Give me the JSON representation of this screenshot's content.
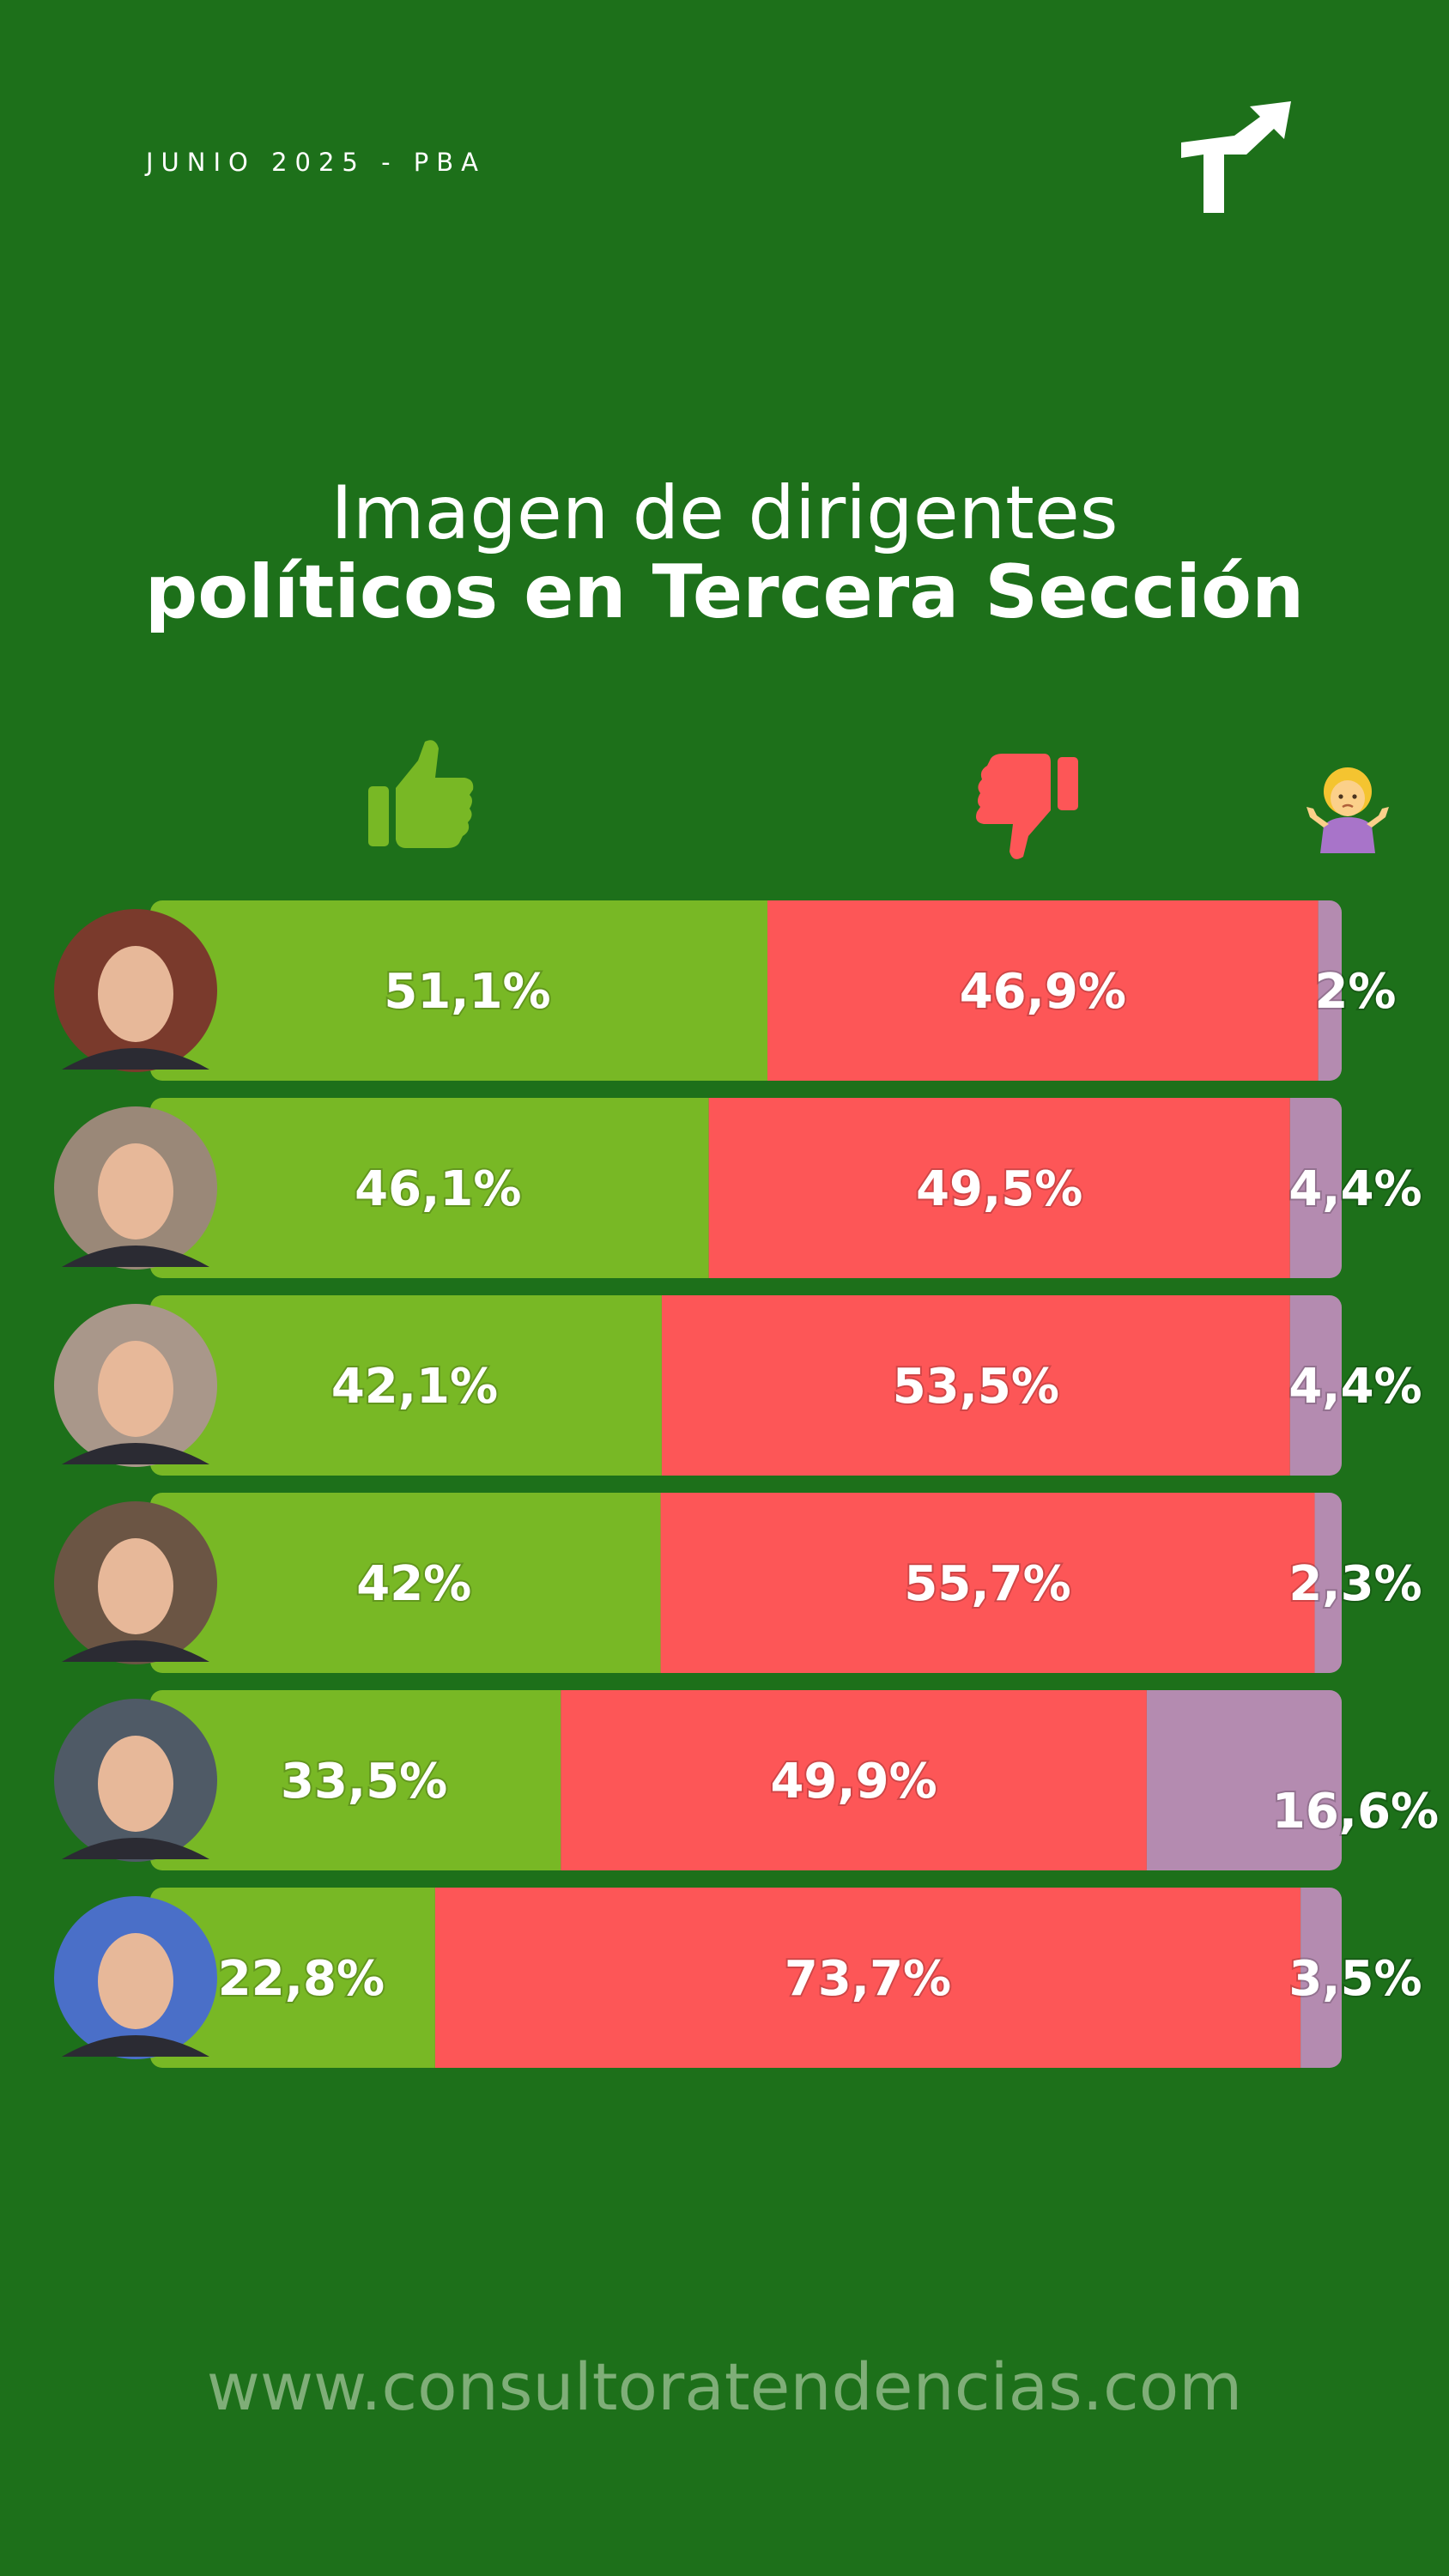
{
  "header": {
    "date_label": "JUNIO 2025 - PBA",
    "logo_icon": "tendencias-logo-icon"
  },
  "title": {
    "line1": "Imagen de dirigentes",
    "line2": "políticos en Tercera Sección"
  },
  "legend": {
    "positive_icon": "thumbs-up-icon",
    "negative_icon": "thumbs-down-icon",
    "unsure_icon": "shrug-icon"
  },
  "colors": {
    "background": "#1d701a",
    "positive": "#78b825",
    "negative": "#fd5657",
    "unsure": "#b48bb0",
    "text": "#ffffff"
  },
  "chart_data": {
    "type": "bar",
    "stacked": true,
    "orientation": "horizontal",
    "categories": [
      "avatar-1",
      "avatar-2",
      "avatar-3",
      "avatar-4",
      "avatar-5",
      "avatar-6"
    ],
    "series": [
      {
        "values": [
          51.1,
          46.1,
          42.1,
          42,
          33.5,
          22.8
        ],
        "labels": [
          "51,1%",
          "46,1%",
          "42,1%",
          "42%",
          "33,5%",
          "22,8%"
        ]
      },
      {
        "values": [
          46.9,
          49.5,
          53.5,
          55.7,
          49.9,
          73.7
        ],
        "labels": [
          "46,9%",
          "49,5%",
          "53,5%",
          "55,7%",
          "49,9%",
          "73,7%"
        ]
      },
      {
        "values": [
          2,
          4.4,
          4.4,
          2.3,
          16.6,
          3.5
        ],
        "labels": [
          "2%",
          "4,4%",
          "4,4%",
          "2,3%",
          "16,6%",
          "3,5%"
        ]
      }
    ],
    "xlim": [
      0,
      100
    ],
    "avatar_colors": [
      "#7a3a2c",
      "#9a8878",
      "#a9978a",
      "#6b5544",
      "#4f5a66",
      "#4a6fc8"
    ]
  },
  "footer": {
    "url": "www.consultoratendencias.com"
  }
}
